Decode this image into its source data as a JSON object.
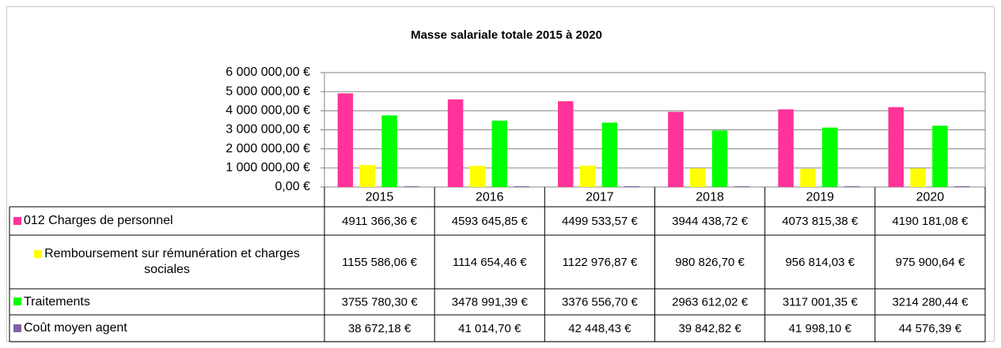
{
  "chart_data": {
    "type": "bar",
    "title": "Masse salariale totale 2015 à 2020",
    "categories": [
      "2015",
      "2016",
      "2017",
      "2018",
      "2019",
      "2020"
    ],
    "ylim": [
      0,
      6000000
    ],
    "yticks": [
      {
        "value": 0,
        "label": "0,00 €"
      },
      {
        "value": 1000000,
        "label": "1 000 000,00 €"
      },
      {
        "value": 2000000,
        "label": "2 000 000,00 €"
      },
      {
        "value": 3000000,
        "label": "3 000 000,00 €"
      },
      {
        "value": 4000000,
        "label": "4 000 000,00 €"
      },
      {
        "value": 5000000,
        "label": "5 000 000,00 €"
      },
      {
        "value": 6000000,
        "label": "6 000 000,00 €"
      }
    ],
    "grid": true,
    "series": [
      {
        "name": "012 Charges de personnel",
        "color": "#ff3399",
        "values": [
          4911366.36,
          4593645.85,
          4499533.57,
          3944438.72,
          4073815.38,
          4190181.08
        ],
        "value_labels": [
          "4911 366,36 €",
          "4593 645,85 €",
          "4499 533,57 €",
          "3944 438,72 €",
          "4073 815,38 €",
          "4190 181,08 €"
        ]
      },
      {
        "name": "Remboursement sur rémunération et charges sociales",
        "color": "#ffff00",
        "values": [
          1155586.06,
          1114654.46,
          1122976.87,
          980826.7,
          956814.03,
          975900.64
        ],
        "value_labels": [
          "1155 586,06 €",
          "1114 654,46 €",
          "1122 976,87 €",
          "980 826,70 €",
          "956 814,03 €",
          "975 900,64 €"
        ]
      },
      {
        "name": "Traitements",
        "color": "#00ff00",
        "values": [
          3755780.3,
          3478991.39,
          3376556.7,
          2963612.02,
          3117001.35,
          3214280.44
        ],
        "value_labels": [
          "3755 780,30 €",
          "3478 991,39 €",
          "3376 556,70 €",
          "2963 612,02 €",
          "3117 001,35 €",
          "3214 280,44 €"
        ]
      },
      {
        "name": "Coût moyen agent",
        "color": "#8064a2",
        "values": [
          38672.18,
          41014.7,
          42448.43,
          39842.82,
          41998.1,
          44576.39
        ],
        "value_labels": [
          "38 672,18 €",
          "41 014,70 €",
          "42 448,43 €",
          "39 842,82 €",
          "41 998,10 €",
          "44 576,39 €"
        ]
      }
    ]
  }
}
